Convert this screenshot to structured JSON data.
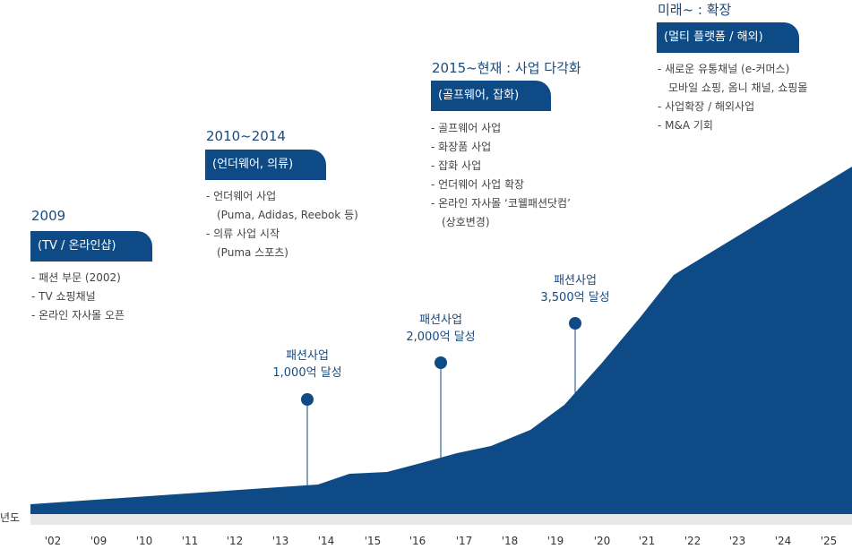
{
  "axis_label": "년도",
  "years": [
    "'02",
    "'09",
    "'10",
    "'11",
    "'12",
    "'13",
    "'14",
    "'15",
    "'16",
    "'17",
    "'18",
    "'19",
    "'20",
    "'21",
    "'22",
    "'23",
    "'24",
    "'25"
  ],
  "stages": [
    {
      "title": "2009",
      "tag": "(TV / 온라인샵)",
      "items": [
        "- 패션 부문 (2002)",
        "- TV 쇼핑채널",
        "- 온라인 자사몰 오픈"
      ]
    },
    {
      "title": "2010~2014",
      "tag": "(언더웨어, 의류)",
      "items": [
        "- 언더웨어 사업",
        "(Puma, Adidas, Reebok 등)",
        "- 의류 사업 시작",
        "(Puma 스포츠)"
      ]
    },
    {
      "title": "2015~현재 : 사업 다각화",
      "tag": "(골프웨어, 잡화)",
      "items": [
        "- 골프웨어 사업",
        "- 화장품 사업",
        "- 잡화 사업",
        "- 언더웨어 사업 확장",
        "- 온라인 자사몰 ‘코웰패션닷컴’",
        "(상호변경)"
      ]
    },
    {
      "title": "미래~ : 확장",
      "tag": "(멀티 플랫폼 / 해외)",
      "items": [
        "- 새로운 유통채널 (e-커머스)",
        "모바일 쇼핑, 옴니 채널, 쇼핑몰",
        "- 사업확장 / 해외사업",
        "- M&A 기회"
      ]
    }
  ],
  "milestones": [
    {
      "line1": "패션사업",
      "line2": "1,000억 달성"
    },
    {
      "line1": "패션사업",
      "line2": "2,000억 달성"
    },
    {
      "line1": "패션사업",
      "line2": "3,500억 달성"
    }
  ],
  "colors": {
    "primary": "#0d4a86",
    "band": "#e6e7e9",
    "title": "#1a4b7f"
  }
}
